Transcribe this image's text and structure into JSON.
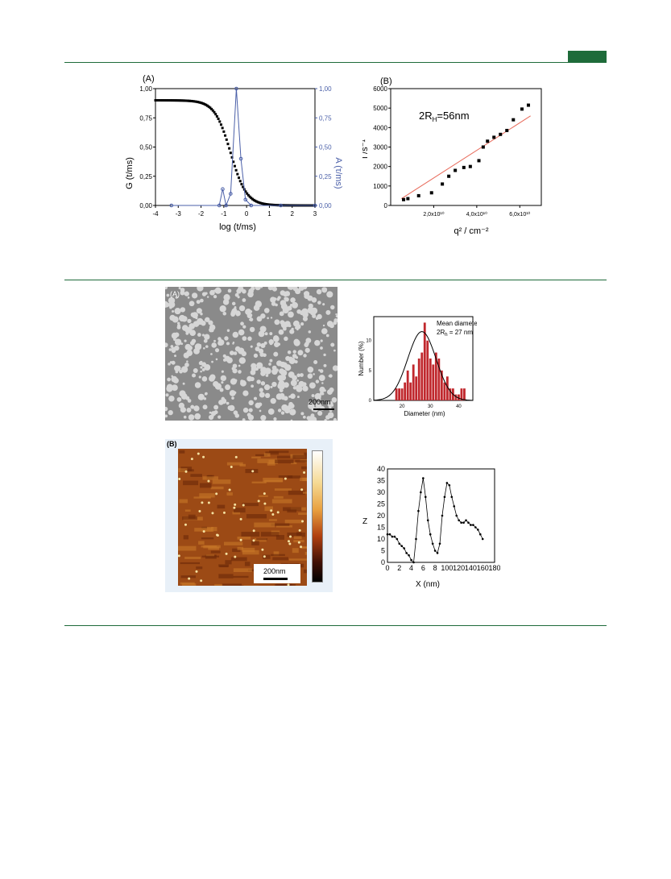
{
  "header": {
    "accent_color": "#1e6b3a"
  },
  "figure1": {
    "panel_a": {
      "label": "(A)",
      "ylabel_left": "G (t/ms)",
      "ylabel_right": "A (τ/ms)",
      "xlabel": "log (t/ms)",
      "left_color": "#000000",
      "right_color": "#4a5fa8"
    },
    "panel_b": {
      "label": "(B)",
      "annotation": "2R",
      "annotation_sub": "H",
      "annotation_rest": "=56nm",
      "ylabel": "Γ/s⁻¹",
      "xlabel": "q² / cm⁻²",
      "fit_color": "#e86a5a"
    }
  },
  "figure2": {
    "sem_label": "(A)",
    "sem_scale": "200nm",
    "hist_legend_1": "Mean diameter",
    "hist_legend_2": "2R",
    "hist_legend_sub": "h",
    "hist_legend_3": " = 27 nm",
    "hist_ylabel": "Number (%)",
    "hist_xlabel": "Diameter (nm)",
    "afm_label": "(B)",
    "afm_scale": "200nm",
    "profile_ylabel": "Z",
    "profile_xlabel": "X (nm)"
  },
  "chart_data": [
    {
      "type": "line",
      "title": "(A)",
      "xlabel": "log (t/ms)",
      "ylabel": "G (t/ms)",
      "ylabel_right": "A (τ/ms)",
      "xlim": [
        -4,
        3
      ],
      "ylim": [
        0,
        1
      ],
      "xticks": [
        "-4",
        "-3",
        "-2",
        "-1",
        "0",
        "1",
        "2",
        "3"
      ],
      "yticks": [
        "0,00",
        "0,25",
        "0,50",
        "0,75",
        "1,00"
      ],
      "series": [
        {
          "axis": "left",
          "x0": -4,
          "x1": 3,
          "plateau": 0.9,
          "tau_log": -0.7,
          "width": 0.35
        },
        {
          "axis": "right",
          "x": [
            -3.3,
            -1.2,
            -1.05,
            -0.9,
            -0.7,
            -0.45,
            -0.25,
            -0.05,
            0.2,
            1.5,
            3
          ],
          "y": [
            0,
            0,
            0.14,
            0,
            0.1,
            1.0,
            0.4,
            0.05,
            0,
            0,
            0
          ]
        }
      ]
    },
    {
      "type": "scatter",
      "title": "(B)",
      "xlabel": "q² / cm⁻²",
      "ylabel": "Γ/s⁻¹",
      "xlim": [
        0,
        70000000000.0
      ],
      "ylim": [
        0,
        6000
      ],
      "xticks": [
        "2,0x10¹⁰",
        "4,0x10¹⁰",
        "6,0x10¹⁰"
      ],
      "yticks": [
        "0",
        "1000",
        "2000",
        "3000",
        "4000",
        "5000",
        "6000"
      ],
      "x": [
        6000000000.0,
        8000000000.0,
        13000000000.0,
        19000000000.0,
        24000000000.0,
        27000000000.0,
        30000000000.0,
        34000000000.0,
        37000000000.0,
        41000000000.0,
        43000000000.0,
        45000000000.0,
        48000000000.0,
        51000000000.0,
        54000000000.0,
        57000000000.0,
        61000000000.0,
        64000000000.0
      ],
      "y": [
        300,
        350,
        500,
        650,
        1100,
        1500,
        1800,
        1950,
        2000,
        2300,
        3000,
        3300,
        3500,
        3650,
        3850,
        4400,
        4950,
        5150
      ],
      "fit": [
        [
          5000000000.0,
          350
        ],
        [
          65000000000.0,
          4600
        ]
      ]
    },
    {
      "type": "bar",
      "xlabel": "Diameter (nm)",
      "ylabel": "Number (%)",
      "xlim": [
        10,
        45
      ],
      "ylim": [
        0,
        14
      ],
      "xticks": [
        "20",
        "30",
        "40"
      ],
      "yticks": [
        "0",
        "5",
        "10"
      ],
      "x": [
        18,
        19,
        20,
        21,
        22,
        23,
        24,
        25,
        26,
        27,
        28,
        29,
        30,
        31,
        32,
        33,
        34,
        35,
        36,
        37,
        38,
        39,
        40,
        41,
        42
      ],
      "values": [
        2,
        2,
        2,
        3,
        5,
        3,
        6,
        4,
        7,
        8,
        13,
        10,
        7,
        6,
        8,
        7,
        5,
        3,
        4,
        2,
        2,
        1,
        1,
        2,
        2
      ],
      "fit_mean": 27,
      "fit_peak": 11.5,
      "fit_sigma": 5
    },
    {
      "type": "line",
      "xlabel": "X (nm)",
      "ylabel": "Z",
      "xlim": [
        0,
        180
      ],
      "ylim": [
        0,
        40
      ],
      "xticks": [
        "0",
        "2",
        "4",
        "6",
        "8",
        "100",
        "120",
        "140",
        "160",
        "180"
      ],
      "yticks": [
        "0",
        "5",
        "10",
        "15",
        "20",
        "25",
        "30",
        "35",
        "40"
      ],
      "x": [
        0,
        4,
        8,
        12,
        16,
        20,
        24,
        28,
        32,
        36,
        40,
        44,
        48,
        52,
        56,
        60,
        64,
        68,
        72,
        76,
        80,
        84,
        88,
        92,
        96,
        100,
        104,
        108,
        112,
        116,
        120,
        124,
        128,
        132,
        136,
        140,
        144,
        148,
        152,
        156,
        160
      ],
      "y": [
        12,
        12,
        11,
        11,
        10,
        8,
        7,
        6,
        4,
        3,
        1,
        0,
        10,
        22,
        30,
        36,
        28,
        18,
        12,
        8,
        5,
        4,
        8,
        20,
        28,
        34,
        33,
        28,
        24,
        20,
        18,
        17,
        17,
        18,
        17,
        16,
        16,
        15,
        14,
        12,
        10
      ]
    }
  ]
}
